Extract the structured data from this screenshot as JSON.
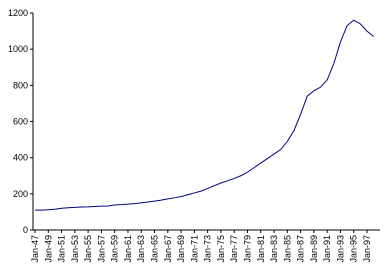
{
  "chart_data": {
    "type": "line",
    "categories": [
      "Jan-47",
      null,
      "Jan-49",
      null,
      "Jan-51",
      null,
      "Jan-53",
      null,
      "Jan-55",
      null,
      "Jan-57",
      null,
      "Jan-59",
      null,
      "Jan-61",
      null,
      "Jan-63",
      null,
      "Jan-65",
      null,
      "Jan-67",
      null,
      "Jan-69",
      null,
      "Jan-71",
      null,
      "Jan-73",
      null,
      "Jan-75",
      null,
      "Jan-77",
      null,
      "Jan-79",
      null,
      "Jan-81",
      null,
      "Jan-83",
      null,
      "Jan-85",
      null,
      "Jan-87",
      null,
      "Jan-89",
      null,
      "Jan-91",
      null,
      "Jan-93",
      null,
      "Jan-95",
      null,
      "Jan-97",
      null
    ],
    "values": [
      110,
      110,
      112,
      115,
      120,
      123,
      125,
      127,
      128,
      130,
      132,
      133,
      138,
      140,
      143,
      146,
      150,
      155,
      160,
      165,
      172,
      178,
      185,
      195,
      205,
      215,
      230,
      245,
      260,
      272,
      285,
      300,
      320,
      345,
      370,
      395,
      420,
      445,
      490,
      550,
      640,
      740,
      770,
      790,
      830,
      920,
      1040,
      1130,
      1160,
      1140,
      1100,
      1070
    ],
    "color": "#000080",
    "ylim": [
      0,
      1200
    ],
    "yticks": [
      0,
      200,
      400,
      600,
      800,
      1000,
      1200
    ],
    "grid": false
  }
}
